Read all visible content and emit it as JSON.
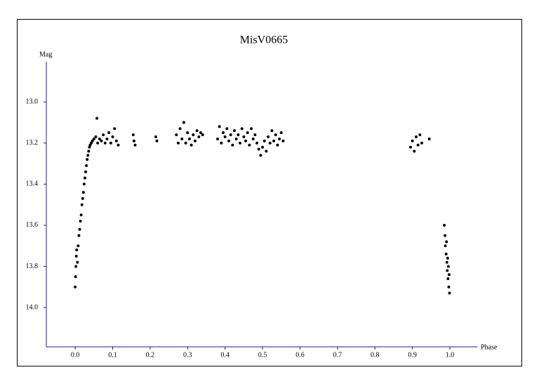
{
  "chart_data": {
    "type": "scatter",
    "title": "MisV0665",
    "y_label": "Mag",
    "x_label": "Phase",
    "y_inverted": true,
    "xlim": [
      -0.077,
      1.073
    ],
    "ylim": [
      12.805,
      14.191
    ],
    "xticks": [
      {
        "value": 0,
        "label": "0.0"
      },
      0.1,
      0.2,
      0.3,
      0.4,
      0.5,
      0.6,
      0.7,
      0.8,
      0.9,
      {
        "value": 1,
        "label": "1.0"
      }
    ],
    "yticks": [
      {
        "value": 13,
        "label": "13.0"
      },
      13.2,
      13.4,
      13.6,
      13.8,
      {
        "value": 14,
        "label": "14.0"
      }
    ],
    "grid": false,
    "axis_color": "#1c1c8c",
    "series": [
      {
        "color": "#000000",
        "x": [
          0.0,
          0.001,
          0.002,
          0.003,
          0.004,
          0.006,
          0.008,
          0.01,
          0.012,
          0.014,
          0.016,
          0.018,
          0.02,
          0.022,
          0.024,
          0.026,
          0.028,
          0.03,
          0.032,
          0.034,
          0.036,
          0.038,
          0.04,
          0.043,
          0.046,
          0.05,
          0.055,
          0.058,
          0.06,
          0.065,
          0.07,
          0.075,
          0.08,
          0.085,
          0.09,
          0.095,
          0.1,
          0.105,
          0.11,
          0.115,
          0.155,
          0.157,
          0.16,
          0.215,
          0.218,
          0.27,
          0.275,
          0.28,
          0.285,
          0.29,
          0.295,
          0.3,
          0.305,
          0.31,
          0.315,
          0.32,
          0.325,
          0.33,
          0.335,
          0.34,
          0.38,
          0.385,
          0.39,
          0.395,
          0.4,
          0.405,
          0.41,
          0.415,
          0.42,
          0.425,
          0.43,
          0.435,
          0.44,
          0.445,
          0.45,
          0.455,
          0.46,
          0.465,
          0.47,
          0.475,
          0.48,
          0.485,
          0.49,
          0.495,
          0.5,
          0.505,
          0.51,
          0.515,
          0.52,
          0.525,
          0.53,
          0.535,
          0.54,
          0.545,
          0.55,
          0.555,
          0.895,
          0.9,
          0.905,
          0.91,
          0.915,
          0.92,
          0.925,
          0.945,
          0.985,
          0.987,
          0.988,
          0.99,
          0.991,
          0.992,
          0.993,
          0.994,
          0.995,
          0.996,
          0.997,
          0.998,
          0.999
        ],
        "y": [
          13.9,
          13.85,
          13.8,
          13.75,
          13.72,
          13.78,
          13.7,
          13.65,
          13.62,
          13.58,
          13.55,
          13.5,
          13.47,
          13.44,
          13.4,
          13.37,
          13.34,
          13.31,
          13.28,
          13.26,
          13.24,
          13.22,
          13.21,
          13.2,
          13.19,
          13.18,
          13.17,
          13.08,
          13.2,
          13.18,
          13.19,
          13.16,
          13.2,
          13.18,
          13.15,
          13.2,
          13.17,
          13.13,
          13.19,
          13.21,
          13.16,
          13.19,
          13.21,
          13.17,
          13.19,
          13.16,
          13.2,
          13.13,
          13.18,
          13.1,
          13.2,
          13.15,
          13.18,
          13.21,
          13.16,
          13.19,
          13.14,
          13.17,
          13.15,
          13.16,
          13.18,
          13.12,
          13.2,
          13.15,
          13.17,
          13.13,
          13.19,
          13.16,
          13.21,
          13.14,
          13.18,
          13.16,
          13.2,
          13.13,
          13.17,
          13.19,
          13.15,
          13.21,
          13.13,
          13.18,
          13.16,
          13.2,
          13.23,
          13.26,
          13.22,
          13.19,
          13.24,
          13.17,
          13.2,
          13.14,
          13.19,
          13.16,
          13.21,
          13.18,
          13.15,
          13.19,
          13.22,
          13.19,
          13.24,
          13.17,
          13.21,
          13.16,
          13.2,
          13.18,
          13.6,
          13.65,
          13.7,
          13.74,
          13.68,
          13.78,
          13.82,
          13.76,
          13.86,
          13.8,
          13.9,
          13.84,
          13.93
        ]
      }
    ]
  }
}
